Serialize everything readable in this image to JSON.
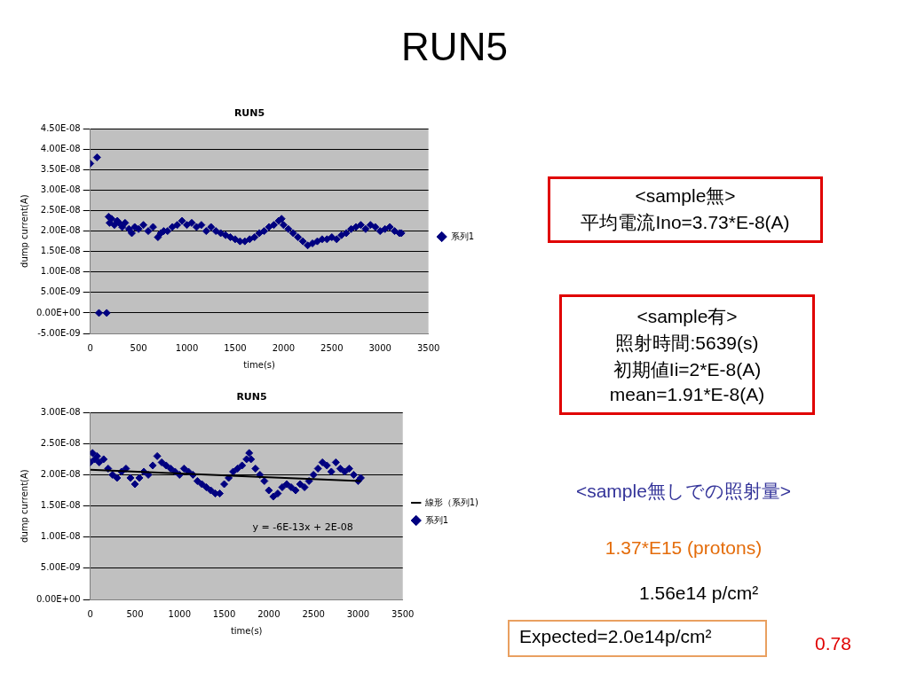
{
  "chart_data": [
    {
      "type": "scatter",
      "title": "RUN5",
      "xlabel": "time(s)",
      "ylabel": "dump current(A)",
      "legend": "right",
      "grid": "y",
      "marker": "diamond",
      "xlim": [
        0,
        3500
      ],
      "xticks": [
        0,
        500,
        1000,
        1500,
        2000,
        2500,
        3000,
        3500
      ],
      "ylim": [
        -5e-09,
        4.5e-08
      ],
      "yticks": [
        {
          "value": -5e-09,
          "label": "-5.00E-09"
        },
        {
          "value": 0,
          "label": "0.00E+00"
        },
        {
          "value": 5e-09,
          "label": "5.00E-09"
        },
        {
          "value": 1e-08,
          "label": "1.00E-08"
        },
        {
          "value": 1.5e-08,
          "label": "1.50E-08"
        },
        {
          "value": 2e-08,
          "label": "2.00E-08"
        },
        {
          "value": 2.5e-08,
          "label": "2.50E-08"
        },
        {
          "value": 3e-08,
          "label": "3.00E-08"
        },
        {
          "value": 3.5e-08,
          "label": "3.50E-08"
        },
        {
          "value": 4e-08,
          "label": "4.00E-08"
        },
        {
          "value": 4.5e-08,
          "label": "4.50E-08"
        }
      ],
      "series": [
        {
          "name": "系列1",
          "color": "#000080",
          "x": [
            0,
            70,
            90,
            170,
            190,
            200,
            220,
            250,
            280,
            300,
            330,
            360,
            400,
            430,
            460,
            500,
            550,
            600,
            650,
            700,
            730,
            760,
            800,
            850,
            900,
            950,
            1000,
            1050,
            1100,
            1150,
            1200,
            1250,
            1300,
            1350,
            1400,
            1450,
            1500,
            1550,
            1600,
            1650,
            1700,
            1750,
            1800,
            1850,
            1900,
            1950,
            1980,
            2000,
            2050,
            2100,
            2150,
            2200,
            2250,
            2300,
            2350,
            2400,
            2450,
            2500,
            2550,
            2600,
            2650,
            2700,
            2750,
            2800,
            2850,
            2900,
            2950,
            3000,
            3050,
            3100,
            3150,
            3200,
            3220
          ],
          "values": [
            3.65e-08,
            3.8e-08,
            0,
            0,
            2.35e-08,
            2.2e-08,
            2.3e-08,
            2.15e-08,
            2.25e-08,
            2.2e-08,
            2.1e-08,
            2.2e-08,
            2.05e-08,
            1.95e-08,
            2.1e-08,
            2.05e-08,
            2.15e-08,
            2e-08,
            2.1e-08,
            1.85e-08,
            1.95e-08,
            2e-08,
            2e-08,
            2.1e-08,
            2.15e-08,
            2.25e-08,
            2.15e-08,
            2.2e-08,
            2.1e-08,
            2.15e-08,
            2e-08,
            2.1e-08,
            2e-08,
            1.95e-08,
            1.9e-08,
            1.85e-08,
            1.8e-08,
            1.75e-08,
            1.75e-08,
            1.8e-08,
            1.85e-08,
            1.95e-08,
            2e-08,
            2.1e-08,
            2.15e-08,
            2.25e-08,
            2.3e-08,
            2.15e-08,
            2.05e-08,
            1.95e-08,
            1.85e-08,
            1.75e-08,
            1.65e-08,
            1.7e-08,
            1.75e-08,
            1.8e-08,
            1.8e-08,
            1.85e-08,
            1.8e-08,
            1.9e-08,
            1.95e-08,
            2.05e-08,
            2.1e-08,
            2.15e-08,
            2.05e-08,
            2.15e-08,
            2.1e-08,
            2e-08,
            2.05e-08,
            2.1e-08,
            2e-08,
            1.95e-08,
            1.95e-08
          ]
        }
      ]
    },
    {
      "type": "scatter",
      "title": "RUN5",
      "xlabel": "time(s)",
      "ylabel": "dump current(A)",
      "legend": "right",
      "grid": "y",
      "marker": "diamond",
      "xlim": [
        0,
        3500
      ],
      "xticks": [
        0,
        500,
        1000,
        1500,
        2000,
        2500,
        3000,
        3500
      ],
      "ylim": [
        0,
        3e-08
      ],
      "yticks": [
        {
          "value": 0,
          "label": "0.00E+00"
        },
        {
          "value": 5e-09,
          "label": "5.00E-09"
        },
        {
          "value": 1e-08,
          "label": "1.00E-08"
        },
        {
          "value": 1.5e-08,
          "label": "1.50E-08"
        },
        {
          "value": 2e-08,
          "label": "2.00E-08"
        },
        {
          "value": 2.5e-08,
          "label": "2.50E-08"
        },
        {
          "value": 3e-08,
          "label": "3.00E-08"
        }
      ],
      "annotations": [
        "y = -6E-13x + 2E-08"
      ],
      "series": [
        {
          "name": "系列1",
          "color": "#000080",
          "x": [
            0,
            25,
            50,
            75,
            100,
            150,
            200,
            250,
            300,
            350,
            400,
            450,
            500,
            550,
            600,
            650,
            700,
            750,
            800,
            850,
            900,
            950,
            1000,
            1050,
            1100,
            1150,
            1200,
            1250,
            1300,
            1350,
            1400,
            1450,
            1500,
            1550,
            1600,
            1650,
            1700,
            1750,
            1780,
            1800,
            1850,
            1900,
            1950,
            2000,
            2050,
            2100,
            2150,
            2200,
            2250,
            2300,
            2350,
            2400,
            2450,
            2500,
            2550,
            2600,
            2650,
            2700,
            2750,
            2800,
            2850,
            2900,
            2950,
            3000,
            3030
          ],
          "values": [
            2.2e-08,
            2.35e-08,
            2.25e-08,
            2.3e-08,
            2.2e-08,
            2.25e-08,
            2.1e-08,
            2e-08,
            1.95e-08,
            2.05e-08,
            2.1e-08,
            1.95e-08,
            1.85e-08,
            1.95e-08,
            2.05e-08,
            2e-08,
            2.15e-08,
            2.3e-08,
            2.2e-08,
            2.15e-08,
            2.1e-08,
            2.05e-08,
            2e-08,
            2.1e-08,
            2.05e-08,
            2e-08,
            1.9e-08,
            1.85e-08,
            1.8e-08,
            1.75e-08,
            1.7e-08,
            1.7e-08,
            1.85e-08,
            1.95e-08,
            2.05e-08,
            2.1e-08,
            2.15e-08,
            2.25e-08,
            2.35e-08,
            2.25e-08,
            2.1e-08,
            2e-08,
            1.9e-08,
            1.75e-08,
            1.65e-08,
            1.7e-08,
            1.8e-08,
            1.85e-08,
            1.8e-08,
            1.75e-08,
            1.85e-08,
            1.8e-08,
            1.9e-08,
            2e-08,
            2.1e-08,
            2.2e-08,
            2.15e-08,
            2.05e-08,
            2.2e-08,
            2.1e-08,
            2.05e-08,
            2.1e-08,
            2e-08,
            1.9e-08,
            1.95e-08
          ]
        },
        {
          "name": "線形（系列1)",
          "type": "line",
          "color": "#000000",
          "marker": "none",
          "line_style": "solid",
          "x": [
            0,
            3030
          ],
          "values": [
            2.08e-08,
            1.9e-08
          ]
        }
      ]
    },
    {
      "type": "other",
      "title": "RUN5",
      "annotations": [
        "<sample無>",
        "平均電流Ino=3.73*E-8(A)",
        "<sample有>",
        "照射時間:5639(s)",
        "初期値Ii=2*E-8(A)",
        "mean=1.91*E-8(A)",
        "<sample無しでの照射量>",
        "1.37*E15 (protons)",
        "1.56e14 p/cm²",
        "Expected=2.0e14p/cm²",
        "0.78"
      ]
    }
  ]
}
